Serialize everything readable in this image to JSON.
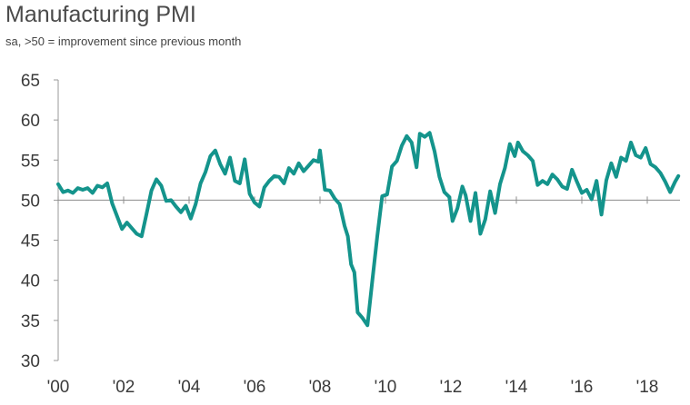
{
  "chart_data": {
    "type": "line",
    "title": "Manufacturing PMI",
    "subtitle": "sa, >50 = improvement since previous month",
    "xlabel": "",
    "ylabel": "",
    "xlim": [
      2000.0,
      2019.0
    ],
    "ylim": [
      30,
      65
    ],
    "reference_line": 50,
    "x_ticks": [
      {
        "value": 2000,
        "label": "'00"
      },
      {
        "value": 2002,
        "label": "'02"
      },
      {
        "value": 2004,
        "label": "'04"
      },
      {
        "value": 2006,
        "label": "'06"
      },
      {
        "value": 2008,
        "label": "'08"
      },
      {
        "value": 2010,
        "label": "'10"
      },
      {
        "value": 2012,
        "label": "'12"
      },
      {
        "value": 2014,
        "label": "'14"
      },
      {
        "value": 2016,
        "label": "'16"
      },
      {
        "value": 2018,
        "label": "'18"
      }
    ],
    "y_ticks": [
      30,
      35,
      40,
      45,
      50,
      55,
      60,
      65
    ],
    "series": [
      {
        "name": "Manufacturing PMI",
        "color": "#14948c",
        "x": [
          2000.0,
          2000.15,
          2000.3,
          2000.45,
          2000.6,
          2000.75,
          2000.9,
          2001.05,
          2001.2,
          2001.35,
          2001.5,
          2001.65,
          2001.8,
          2001.95,
          2002.1,
          2002.25,
          2002.4,
          2002.55,
          2002.7,
          2002.85,
          2003.0,
          2003.15,
          2003.3,
          2003.45,
          2003.6,
          2003.75,
          2003.9,
          2004.05,
          2004.2,
          2004.35,
          2004.5,
          2004.65,
          2004.8,
          2004.95,
          2005.1,
          2005.25,
          2005.4,
          2005.55,
          2005.7,
          2005.85,
          2006.0,
          2006.15,
          2006.3,
          2006.45,
          2006.6,
          2006.75,
          2006.9,
          2007.05,
          2007.2,
          2007.35,
          2007.5,
          2007.65,
          2007.8,
          2007.95,
          2008.0,
          2008.15,
          2008.3,
          2008.45,
          2008.6,
          2008.75,
          2008.85,
          2008.95,
          2009.05,
          2009.15,
          2009.3,
          2009.45,
          2009.6,
          2009.75,
          2009.9,
          2010.05,
          2010.2,
          2010.35,
          2010.5,
          2010.65,
          2010.8,
          2010.95,
          2011.05,
          2011.2,
          2011.35,
          2011.5,
          2011.65,
          2011.8,
          2011.95,
          2012.05,
          2012.2,
          2012.35,
          2012.45,
          2012.6,
          2012.75,
          2012.9,
          2013.05,
          2013.2,
          2013.35,
          2013.5,
          2013.65,
          2013.8,
          2013.95,
          2014.05,
          2014.2,
          2014.35,
          2014.5,
          2014.65,
          2014.8,
          2014.95,
          2015.1,
          2015.25,
          2015.4,
          2015.55,
          2015.7,
          2015.85,
          2016.0,
          2016.15,
          2016.3,
          2016.45,
          2016.6,
          2016.75,
          2016.9,
          2017.05,
          2017.2,
          2017.35,
          2017.5,
          2017.65,
          2017.8,
          2017.95,
          2018.1,
          2018.25,
          2018.4,
          2018.55,
          2018.7,
          2018.85,
          2018.95
        ],
        "values": [
          52.0,
          51.0,
          51.2,
          50.9,
          51.5,
          51.3,
          51.5,
          50.9,
          51.8,
          51.6,
          52.1,
          49.6,
          48.0,
          46.4,
          47.2,
          46.5,
          45.8,
          45.5,
          48.3,
          51.2,
          52.6,
          51.8,
          49.9,
          50.0,
          49.2,
          48.5,
          49.3,
          47.7,
          49.5,
          52.1,
          53.5,
          55.5,
          56.2,
          54.5,
          53.3,
          55.3,
          52.4,
          52.1,
          55.1,
          50.8,
          49.7,
          49.2,
          51.6,
          52.4,
          53.0,
          52.9,
          52.1,
          54.0,
          53.3,
          54.6,
          53.6,
          54.3,
          55.0,
          54.8,
          56.2,
          51.3,
          51.2,
          50.2,
          49.5,
          46.8,
          45.5,
          42.0,
          41.0,
          36.0,
          35.3,
          34.4,
          40.0,
          45.5,
          50.5,
          50.7,
          54.2,
          54.9,
          56.8,
          58.0,
          57.2,
          54.1,
          58.3,
          57.9,
          58.4,
          56.1,
          52.9,
          51.0,
          50.4,
          47.4,
          49.0,
          51.7,
          50.6,
          47.4,
          50.9,
          45.8,
          47.6,
          51.1,
          48.4,
          52.0,
          54.0,
          57.0,
          55.5,
          57.2,
          56.1,
          55.6,
          54.9,
          51.9,
          52.4,
          52.0,
          53.2,
          52.6,
          51.7,
          51.4,
          53.8,
          52.3,
          50.9,
          51.3,
          50.1,
          52.4,
          48.2,
          52.5,
          54.6,
          52.9,
          55.3,
          54.9,
          57.2,
          55.6,
          55.3,
          56.5,
          54.5,
          54.1,
          53.4,
          52.3,
          51.0,
          52.3,
          53.0
        ]
      }
    ]
  }
}
